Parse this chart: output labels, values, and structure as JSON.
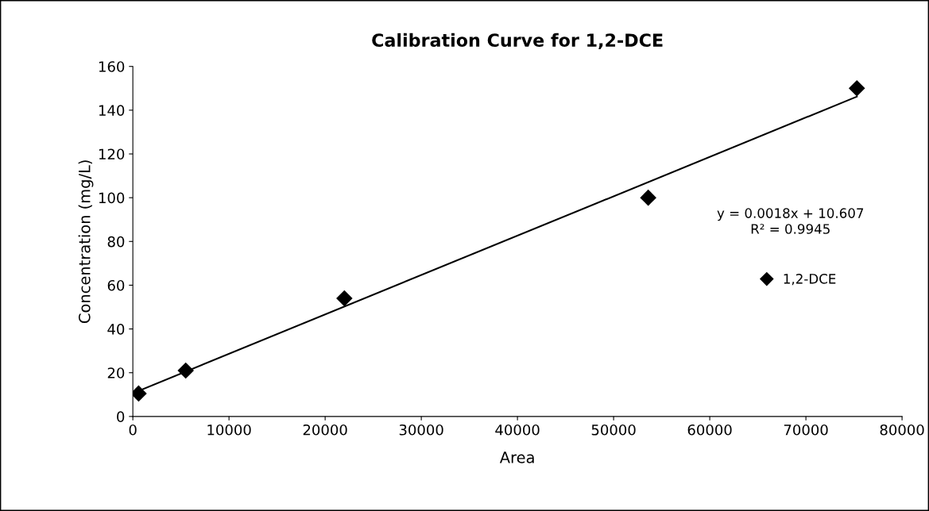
{
  "chart_data": {
    "type": "scatter",
    "title": "Calibration Curve for 1,2-DCE",
    "xlabel": "Area",
    "ylabel": "Concentration (mg/L)",
    "series": [
      {
        "name": "1,2-DCE",
        "color": "#000000",
        "marker": "diamond",
        "x": [
          600,
          5500,
          22000,
          53600,
          75300
        ],
        "values": [
          10.5,
          21,
          54,
          100,
          150
        ]
      },
      {
        "type": "line",
        "color": "#000000",
        "marker": "none",
        "line_style": "solid",
        "x": [
          600,
          75300
        ],
        "values": [
          11.7,
          146.2
        ]
      }
    ],
    "annotations": [
      "y = 0.0018x + 10.607\nR² = 0.9945"
    ],
    "xlim": [
      0,
      80000
    ],
    "xticks": [
      0,
      10000,
      20000,
      30000,
      40000,
      50000,
      60000,
      70000,
      80000
    ],
    "ylim": [
      0,
      160
    ],
    "yticks": [
      0,
      20,
      40,
      60,
      80,
      100,
      120,
      140,
      160
    ],
    "grid": false,
    "legend": "right"
  }
}
